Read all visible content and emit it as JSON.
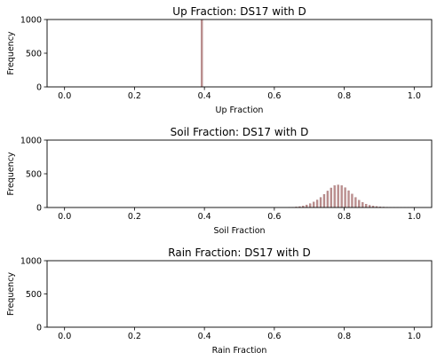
{
  "chart_data": [
    {
      "type": "histogram",
      "title": "Up Fraction: DS17 with D",
      "xlabel": "Up Fraction",
      "ylabel": "Frequency",
      "xlim": [
        -0.05,
        1.05
      ],
      "ylim": [
        0,
        1000
      ],
      "xticks": [
        "0.0",
        "0.2",
        "0.4",
        "0.6",
        "0.8",
        "1.0"
      ],
      "yticks": [
        "0",
        "500",
        "1000"
      ],
      "bar_color": "#bc8f8f",
      "bin_width": 0.005,
      "bins": [
        [
          0.39,
          1000
        ]
      ]
    },
    {
      "type": "histogram",
      "title": "Soil Fraction: DS17 with D",
      "xlabel": "Soil Fraction",
      "ylabel": "Frequency",
      "xlim": [
        -0.05,
        1.05
      ],
      "ylim": [
        0,
        1000
      ],
      "xticks": [
        "0.0",
        "0.2",
        "0.4",
        "0.6",
        "0.8",
        "1.0"
      ],
      "yticks": [
        "0",
        "500",
        "1000"
      ],
      "bar_color": "#bc8f8f",
      "bin_width": 0.005,
      "bins": [
        [
          0.64,
          2
        ],
        [
          0.65,
          4
        ],
        [
          0.66,
          8
        ],
        [
          0.67,
          14
        ],
        [
          0.68,
          24
        ],
        [
          0.69,
          38
        ],
        [
          0.7,
          58
        ],
        [
          0.71,
          82
        ],
        [
          0.72,
          112
        ],
        [
          0.73,
          150
        ],
        [
          0.74,
          195
        ],
        [
          0.75,
          245
        ],
        [
          0.76,
          290
        ],
        [
          0.77,
          325
        ],
        [
          0.78,
          335
        ],
        [
          0.79,
          325
        ],
        [
          0.8,
          295
        ],
        [
          0.81,
          250
        ],
        [
          0.82,
          200
        ],
        [
          0.83,
          150
        ],
        [
          0.84,
          108
        ],
        [
          0.85,
          75
        ],
        [
          0.86,
          50
        ],
        [
          0.87,
          33
        ],
        [
          0.88,
          22
        ],
        [
          0.89,
          15
        ],
        [
          0.9,
          10
        ],
        [
          0.91,
          7
        ],
        [
          0.92,
          5
        ],
        [
          0.93,
          4
        ],
        [
          0.94,
          3
        ],
        [
          0.95,
          2
        ],
        [
          0.96,
          2
        ],
        [
          0.97,
          1
        ],
        [
          0.98,
          1
        ],
        [
          0.99,
          1
        ],
        [
          1.0,
          1
        ]
      ]
    },
    {
      "type": "histogram",
      "title": "Rain Fraction: DS17 with D",
      "xlabel": "Rain Fraction",
      "ylabel": "Frequency",
      "xlim": [
        -0.05,
        1.05
      ],
      "ylim": [
        0,
        1000
      ],
      "xticks": [
        "0.0",
        "0.2",
        "0.4",
        "0.6",
        "0.8",
        "1.0"
      ],
      "yticks": [
        "0",
        "500",
        "1000"
      ],
      "bar_color": "#bc8f8f",
      "bin_width": 0.005,
      "bins": []
    }
  ]
}
